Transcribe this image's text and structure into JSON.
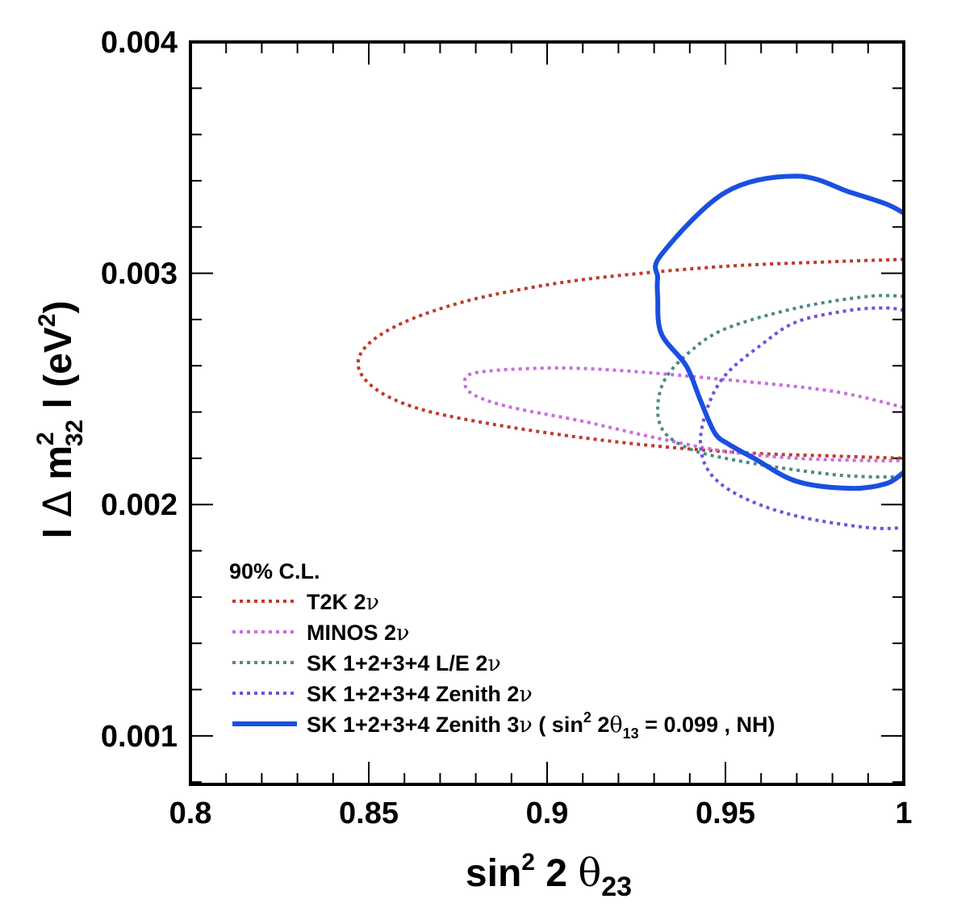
{
  "chart_data": {
    "type": "line",
    "title": "",
    "xlabel": {
      "main": "sin",
      "sup": "2",
      "mid": " 2 ",
      "greek": "θ",
      "sub": "23"
    },
    "ylabel": {
      "pre": "l ",
      "greek": "Δ",
      "m": " m",
      "sup": "2",
      "sub": "32",
      "post": " l  (eV",
      "sup2": "2",
      "end": ")"
    },
    "xlim": [
      0.8,
      1.0
    ],
    "ylim": [
      0.00079,
      0.004
    ],
    "x_ticks": [
      {
        "value": 0.8,
        "label": "0.8"
      },
      {
        "value": 0.85,
        "label": "0.85"
      },
      {
        "value": 0.9,
        "label": "0.9"
      },
      {
        "value": 0.95,
        "label": "0.95"
      },
      {
        "value": 1.0,
        "label": "1"
      }
    ],
    "y_ticks": [
      {
        "value": 0.001,
        "label": "0.001"
      },
      {
        "value": 0.002,
        "label": "0.002"
      },
      {
        "value": 0.003,
        "label": "0.003"
      },
      {
        "value": 0.004,
        "label": "0.004"
      }
    ],
    "legend": {
      "placement": "bottom-left",
      "header": "90% C.L."
    },
    "series": [
      {
        "name": "T2K 2ν",
        "label": "T2K 2",
        "nu": "ν",
        "color": "#c0392b",
        "style": "dotted",
        "x": [
          1.0,
          0.98,
          0.95,
          0.92,
          0.9,
          0.88,
          0.865,
          0.855,
          0.849,
          0.847,
          0.849,
          0.855,
          0.865,
          0.88,
          0.9,
          0.92,
          0.94,
          0.96,
          0.98,
          1.0
        ],
        "y": [
          0.00306,
          0.00305,
          0.00303,
          0.00299,
          0.00295,
          0.00289,
          0.00282,
          0.00275,
          0.00268,
          0.00261,
          0.00254,
          0.00247,
          0.00241,
          0.00236,
          0.00231,
          0.00227,
          0.00224,
          0.00222,
          0.00221,
          0.0022
        ]
      },
      {
        "name": "MINOS 2ν",
        "label": "MINOS 2",
        "nu": "ν",
        "color": "#c86de0",
        "style": "dotted",
        "x": [
          1.0,
          0.98,
          0.95,
          0.92,
          0.9,
          0.88,
          0.877,
          0.88,
          0.89,
          0.91,
          0.93,
          0.95,
          0.97,
          0.99,
          1.0
        ],
        "y": [
          0.00242,
          0.00249,
          0.00254,
          0.00258,
          0.00259,
          0.00257,
          0.00252,
          0.00247,
          0.00242,
          0.00236,
          0.00229,
          0.00223,
          0.0022,
          0.00219,
          0.00219
        ]
      },
      {
        "name": "SK 1+2+3+4 L/E 2ν",
        "label": "SK 1+2+3+4 L/E 2",
        "nu": "ν",
        "color": "#4d8a85",
        "style": "dotted",
        "x": [
          1.0,
          0.99,
          0.97,
          0.95,
          0.94,
          0.933,
          0.931,
          0.933,
          0.94,
          0.95,
          0.965,
          0.98,
          0.99,
          1.0
        ],
        "y": [
          0.0029,
          0.0029,
          0.00285,
          0.00276,
          0.00266,
          0.00254,
          0.00241,
          0.00231,
          0.00224,
          0.0022,
          0.00216,
          0.00213,
          0.00212,
          0.00212
        ]
      },
      {
        "name": "SK 1+2+3+4 Zenith 2ν",
        "label": "SK 1+2+3+4 Zenith 2",
        "nu": "ν",
        "color": "#6b52e0",
        "style": "dotted",
        "x": [
          1.0,
          0.995,
          0.985,
          0.97,
          0.96,
          0.95,
          0.945,
          0.943,
          0.946,
          0.955,
          0.97,
          0.99,
          1.0
        ],
        "y": [
          0.00284,
          0.00285,
          0.00284,
          0.00279,
          0.00269,
          0.00256,
          0.00242,
          0.00226,
          0.00213,
          0.00203,
          0.00195,
          0.0019,
          0.0019
        ]
      },
      {
        "name": "SK 1+2+3+4 Zenith 3ν ( sin² 2θ₁₃ = 0.099 , NH)",
        "label": "SK 1+2+3+4 Zenith 3",
        "nu": "ν",
        "label_rest_a": " ( sin",
        "label_sup": "2",
        "label_rest_b": " 2",
        "label_theta": "θ",
        "label_sub": "13",
        "label_rest_c": " = 0.099 , NH)",
        "color": "#1a4fe0",
        "style": "solid",
        "x": [
          1.0,
          0.995,
          0.985,
          0.97,
          0.95,
          0.932,
          0.931,
          0.931,
          0.932,
          0.939,
          0.943,
          0.947,
          0.951,
          0.958,
          0.97,
          0.985,
          0.995,
          1.0
        ],
        "y": [
          0.00326,
          0.0033,
          0.00335,
          0.00342,
          0.00335,
          0.00308,
          0.00298,
          0.0029,
          0.00274,
          0.0026,
          0.00245,
          0.00231,
          0.00226,
          0.0022,
          0.0021,
          0.00207,
          0.00209,
          0.00214
        ]
      }
    ]
  }
}
